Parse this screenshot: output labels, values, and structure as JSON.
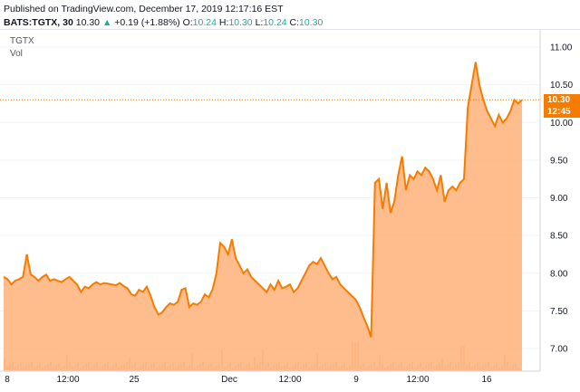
{
  "header": {
    "published": "Published on TradingView.com, December 17, 2019 12:17:16 EST"
  },
  "legend": {
    "symbol": "BATS:TGTX, 30",
    "last": "10.30",
    "change": "+0.19 (+1.88%)",
    "o_label": "O:",
    "o_value": "10.24",
    "h_label": "H:",
    "h_value": "10.30",
    "l_label": "L:",
    "l_value": "10.24",
    "c_label": "C:",
    "c_value": "10.30",
    "up_arrow": "triangle-up-icon"
  },
  "pane": {
    "symbol_label": "TGTX",
    "vol_label": "Vol"
  },
  "price_tag": {
    "price": "10.30",
    "countdown": "12:45"
  },
  "colors": {
    "line": "#f57c00",
    "area": "#ffb27a",
    "up": "#26a69a",
    "vol": "#d7b98a"
  },
  "chart_data": {
    "type": "area",
    "x_ticks": [
      "8",
      "12:00",
      "25",
      "Dec",
      "12:00",
      "9",
      "12:00",
      "16"
    ],
    "y_ticks": [
      "7.00",
      "7.50",
      "8.00",
      "8.50",
      "9.00",
      "9.50",
      "10.00",
      "10.50",
      "11.00"
    ],
    "ylim": [
      6.8,
      11.1
    ],
    "last_price": 10.3,
    "values": [
      7.95,
      7.92,
      7.85,
      7.9,
      7.92,
      7.95,
      8.25,
      7.98,
      7.95,
      7.9,
      7.95,
      7.98,
      7.9,
      7.92,
      7.9,
      7.88,
      7.92,
      7.95,
      7.9,
      7.85,
      7.75,
      7.82,
      7.8,
      7.85,
      7.88,
      7.85,
      7.87,
      7.86,
      7.85,
      7.84,
      7.87,
      7.83,
      7.8,
      7.72,
      7.7,
      7.78,
      7.75,
      7.82,
      7.7,
      7.55,
      7.45,
      7.48,
      7.55,
      7.6,
      7.58,
      7.62,
      7.78,
      7.8,
      7.55,
      7.6,
      7.58,
      7.62,
      7.72,
      7.68,
      7.78,
      8.0,
      8.4,
      8.35,
      8.25,
      8.45,
      8.2,
      8.1,
      8.0,
      8.05,
      7.95,
      7.9,
      7.85,
      7.8,
      7.75,
      7.85,
      7.78,
      7.9,
      7.8,
      7.82,
      7.85,
      7.75,
      7.8,
      7.9,
      8.0,
      8.1,
      8.15,
      8.12,
      8.2,
      8.1,
      8.0,
      7.92,
      7.95,
      7.85,
      7.8,
      7.75,
      7.7,
      7.65,
      7.55,
      7.42,
      7.3,
      7.15,
      9.2,
      9.25,
      8.85,
      9.2,
      8.8,
      8.95,
      9.3,
      9.55,
      9.1,
      9.3,
      9.25,
      9.35,
      9.3,
      9.4,
      9.35,
      9.25,
      9.1,
      9.3,
      8.95,
      9.1,
      9.15,
      9.1,
      9.2,
      9.25,
      10.2,
      10.5,
      10.8,
      10.5,
      10.3,
      10.15,
      10.05,
      9.95,
      10.1,
      10.0,
      10.05,
      10.15,
      10.3,
      10.25,
      10.3
    ]
  }
}
